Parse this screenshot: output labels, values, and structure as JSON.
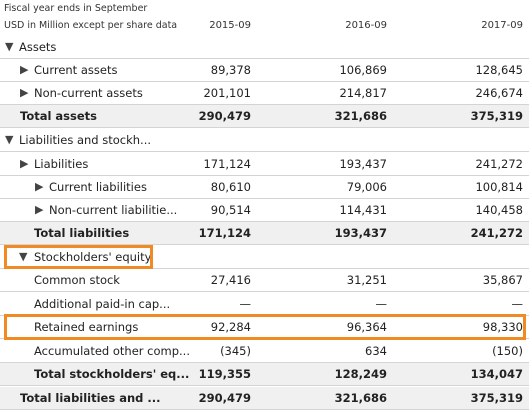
{
  "header": {
    "fiscal_note": "Fiscal year ends in September",
    "units_note": "USD in Million except per share data",
    "years": [
      "2015-09",
      "2016-09",
      "2017-09"
    ]
  },
  "rows": [
    {
      "label": "Assets",
      "arrow": "▼",
      "values": [
        "",
        "",
        ""
      ]
    },
    {
      "label": "Current assets",
      "arrow": "▶",
      "values": [
        "89,378",
        "106,869",
        "128,645"
      ]
    },
    {
      "label": "Non-current assets",
      "arrow": "▶",
      "values": [
        "201,101",
        "214,817",
        "246,674"
      ]
    },
    {
      "label": "Total assets",
      "arrow": "",
      "values": [
        "290,479",
        "321,686",
        "375,319"
      ]
    },
    {
      "label": "Liabilities and stockh...",
      "arrow": "▼",
      "values": [
        "",
        "",
        ""
      ]
    },
    {
      "label": "Liabilities",
      "arrow": "▶",
      "values": [
        "171,124",
        "193,437",
        "241,272"
      ]
    },
    {
      "label": "Current liabilities",
      "arrow": "▶",
      "values": [
        "80,610",
        "79,006",
        "100,814"
      ]
    },
    {
      "label": "Non-current liabilitie...",
      "arrow": "▶",
      "values": [
        "90,514",
        "114,431",
        "140,458"
      ]
    },
    {
      "label": "Total liabilities",
      "arrow": "",
      "values": [
        "171,124",
        "193,437",
        "241,272"
      ]
    },
    {
      "label": "Stockholders' equity",
      "arrow": "▼",
      "values": [
        "",
        "",
        ""
      ]
    },
    {
      "label": "Common stock",
      "arrow": "",
      "values": [
        "27,416",
        "31,251",
        "35,867"
      ]
    },
    {
      "label": "Additional paid-in cap...",
      "arrow": "",
      "values": [
        "—",
        "—",
        "—"
      ]
    },
    {
      "label": "Retained earnings",
      "arrow": "",
      "values": [
        "92,284",
        "96,364",
        "98,330"
      ]
    },
    {
      "label": "Accumulated other comp...",
      "arrow": "",
      "values": [
        "(345)",
        "634",
        "(150)"
      ]
    },
    {
      "label": "Total stockholders' eq...",
      "arrow": "",
      "values": [
        "119,355",
        "128,249",
        "134,047"
      ]
    },
    {
      "label": "Total liabilities and ...",
      "arrow": "",
      "values": [
        "290,479",
        "321,686",
        "375,319"
      ]
    }
  ],
  "highlight_color": "#f08a24"
}
